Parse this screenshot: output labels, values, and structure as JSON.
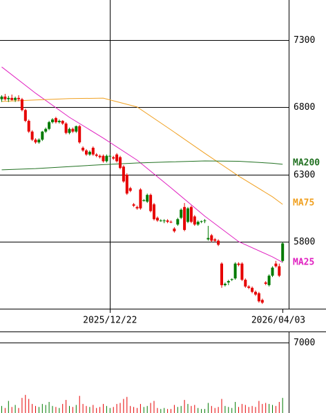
{
  "chart_data": {
    "type": "candlestick",
    "up_color": "#007a00",
    "down_color": "#e60000",
    "ylim": [
      5305,
      7597
    ],
    "yticks": [
      5800,
      6300,
      6800,
      7300
    ],
    "xticks": [
      {
        "value": 32,
        "label": "2025/12/22"
      },
      {
        "value": 83,
        "label": "2026/04/03"
      }
    ],
    "candles": [
      [
        6860,
        6890,
        6840,
        6880
      ],
      [
        6880,
        6900,
        6850,
        6860
      ],
      [
        6860,
        6885,
        6840,
        6870
      ],
      [
        6870,
        6895,
        6850,
        6855
      ],
      [
        6855,
        6880,
        6840,
        6870
      ],
      [
        6870,
        6890,
        6845,
        6860
      ],
      [
        6860,
        6870,
        6770,
        6780
      ],
      [
        6780,
        6790,
        6690,
        6700
      ],
      [
        6700,
        6710,
        6610,
        6620
      ],
      [
        6620,
        6630,
        6550,
        6560
      ],
      [
        6560,
        6570,
        6530,
        6540
      ],
      [
        6540,
        6570,
        6530,
        6560
      ],
      [
        6560,
        6625,
        6550,
        6620
      ],
      [
        6620,
        6650,
        6610,
        6640
      ],
      [
        6640,
        6700,
        6630,
        6690
      ],
      [
        6690,
        6720,
        6680,
        6710
      ],
      [
        6720,
        6730,
        6680,
        6690
      ],
      [
        6690,
        6710,
        6680,
        6700
      ],
      [
        6700,
        6705,
        6670,
        6680
      ],
      [
        6680,
        6690,
        6600,
        6610
      ],
      [
        6610,
        6650,
        6600,
        6640
      ],
      [
        6640,
        6650,
        6610,
        6620
      ],
      [
        6620,
        6665,
        6610,
        6660
      ],
      [
        6660,
        6670,
        6530,
        6540
      ],
      [
        6500,
        6510,
        6470,
        6480
      ],
      [
        6480,
        6490,
        6440,
        6450
      ],
      [
        6450,
        6480,
        6440,
        6470
      ],
      [
        6500,
        6510,
        6440,
        6450
      ],
      [
        6450,
        6460,
        6430,
        6440
      ],
      [
        6440,
        6450,
        6420,
        6430
      ],
      [
        6440,
        6450,
        6390,
        6400
      ],
      [
        6400,
        6450,
        6390,
        6440
      ],
      [
        6440,
        6450,
        6430,
        6440
      ],
      [
        6430,
        6440,
        6410,
        6420
      ],
      [
        6450,
        6460,
        6390,
        6400
      ],
      [
        6430,
        6440,
        6340,
        6350
      ],
      [
        6360,
        6370,
        6240,
        6250
      ],
      [
        6300,
        6310,
        6150,
        6160
      ],
      [
        6200,
        6210,
        6170,
        6180
      ],
      [
        6080,
        6090,
        6060,
        6070
      ],
      [
        6060,
        6070,
        6040,
        6050
      ],
      [
        6190,
        6200,
        6040,
        6050
      ],
      [
        6110,
        6120,
        6100,
        6110
      ],
      [
        6100,
        6160,
        6090,
        6150
      ],
      [
        6150,
        6160,
        6020,
        6030
      ],
      [
        6080,
        6090,
        5960,
        5970
      ],
      [
        5980,
        5990,
        5950,
        5960
      ],
      [
        5960,
        5970,
        5950,
        5960
      ],
      [
        5960,
        5970,
        5940,
        5960
      ],
      [
        5960,
        5970,
        5940,
        5950
      ],
      [
        5950,
        5960,
        5940,
        5945
      ],
      [
        5900,
        5910,
        5870,
        5880
      ],
      [
        5930,
        5980,
        5920,
        5970
      ],
      [
        5980,
        6050,
        5970,
        6040
      ],
      [
        6060,
        6090,
        5880,
        5890
      ],
      [
        5950,
        6060,
        5940,
        6050
      ],
      [
        6060,
        6070,
        5940,
        5950
      ],
      [
        5990,
        6000,
        5920,
        5930
      ],
      [
        5930,
        5960,
        5920,
        5950
      ],
      [
        5950,
        5960,
        5940,
        5955
      ],
      [
        5955,
        5970,
        5940,
        5960
      ],
      [
        5820,
        5920,
        5810,
        5830
      ],
      [
        5850,
        5860,
        5800,
        5810
      ],
      [
        5820,
        5830,
        5800,
        5810
      ],
      [
        5810,
        5820,
        5770,
        5780
      ],
      [
        5640,
        5650,
        5460,
        5480
      ],
      [
        5480,
        5500,
        5470,
        5490
      ],
      [
        5500,
        5520,
        5480,
        5510
      ],
      [
        5520,
        5530,
        5510,
        5525
      ],
      [
        5530,
        5650,
        5520,
        5640
      ],
      [
        5640,
        5650,
        5620,
        5630
      ],
      [
        5640,
        5650,
        5510,
        5520
      ],
      [
        5520,
        5530,
        5460,
        5470
      ],
      [
        5470,
        5480,
        5450,
        5460
      ],
      [
        5460,
        5470,
        5420,
        5430
      ],
      [
        5430,
        5440,
        5400,
        5410
      ],
      [
        5420,
        5430,
        5350,
        5360
      ],
      [
        5370,
        5380,
        5340,
        5350
      ],
      [
        5500,
        5510,
        5480,
        5490
      ],
      [
        5480,
        5560,
        5470,
        5550
      ],
      [
        5550,
        5620,
        5540,
        5610
      ],
      [
        5640,
        5660,
        5610,
        5620
      ],
      [
        5620,
        5640,
        5540,
        5550
      ],
      [
        5660,
        5800,
        5650,
        5790
      ]
    ],
    "volume_ylim": [
      0,
      8100
    ],
    "volume_yticks": [
      7000
    ],
    "volumes": [
      700,
      500,
      1200,
      600,
      800,
      500,
      1500,
      1800,
      1400,
      900,
      700,
      600,
      900,
      800,
      1100,
      700,
      600,
      500,
      900,
      1300,
      700,
      600,
      800,
      1700,
      900,
      700,
      600,
      800,
      500,
      600,
      900,
      700,
      500,
      600,
      900,
      1000,
      1400,
      1600,
      700,
      600,
      500,
      900,
      600,
      700,
      1000,
      1200,
      500,
      400,
      500,
      400,
      400,
      800,
      600,
      700,
      1300,
      900,
      700,
      800,
      500,
      400,
      400,
      1000,
      700,
      500,
      600,
      1400,
      700,
      600,
      500,
      1100,
      600,
      900,
      800,
      600,
      700,
      600,
      1200,
      900,
      1000,
      900,
      800,
      700,
      1100,
      1500
    ],
    "series": [
      {
        "name": "MA25",
        "color": "#e020c0",
        "x": [
          0,
          10,
          20,
          30,
          40,
          50,
          60,
          70,
          80,
          83
        ],
        "values": [
          7100,
          6905,
          6726,
          6572,
          6408,
          6203,
          5992,
          5803,
          5690,
          5649
        ]
      },
      {
        "name": "MA75",
        "color": "#f0a020",
        "x": [
          0,
          10,
          20,
          30,
          40,
          50,
          60,
          70,
          80,
          83
        ],
        "values": [
          6844,
          6855,
          6865,
          6868,
          6803,
          6633,
          6459,
          6290,
          6136,
          6080
        ]
      },
      {
        "name": "MA200",
        "color": "#207020",
        "x": [
          0,
          10,
          20,
          30,
          40,
          50,
          60,
          70,
          80,
          83
        ],
        "values": [
          6336,
          6345,
          6360,
          6375,
          6387,
          6395,
          6402,
          6400,
          6385,
          6377
        ]
      }
    ]
  }
}
